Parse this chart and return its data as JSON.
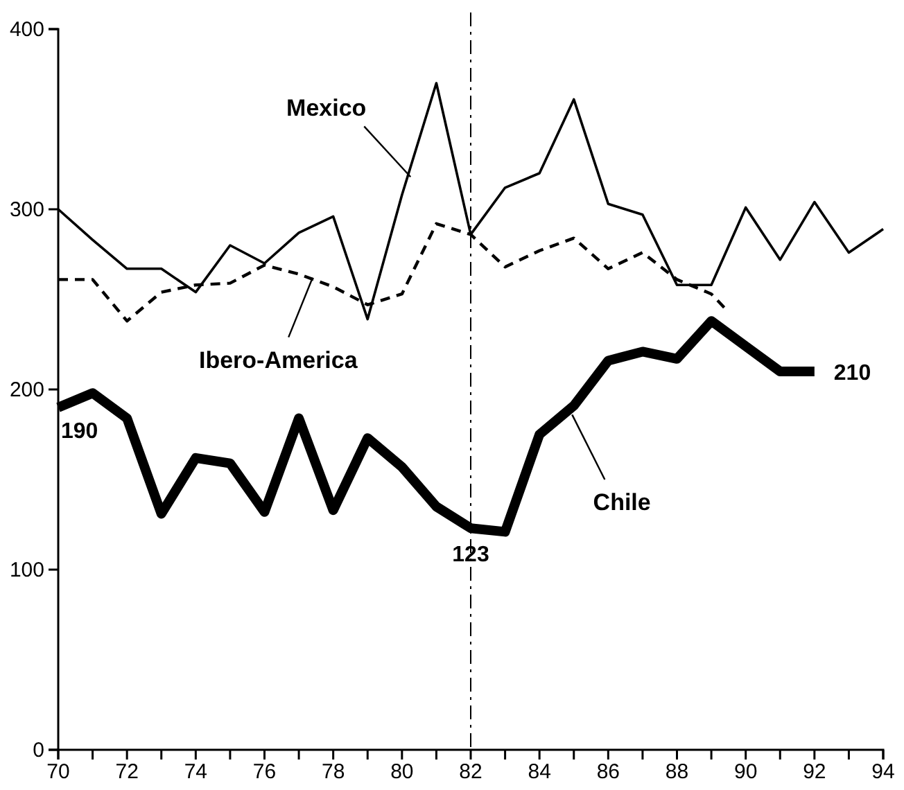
{
  "chart_data": {
    "type": "line",
    "xlim": [
      70,
      94
    ],
    "xticks": [
      70,
      {
        "value": 71,
        "label": null
      },
      72,
      {
        "value": 73,
        "label": null
      },
      74,
      {
        "value": 75,
        "label": null
      },
      76,
      {
        "value": 77,
        "label": null
      },
      78,
      {
        "value": 79,
        "label": null
      },
      80,
      {
        "value": 81,
        "label": null
      },
      82,
      {
        "value": 83,
        "label": null
      },
      84,
      {
        "value": 85,
        "label": null
      },
      86,
      {
        "value": 87,
        "label": null
      },
      88,
      {
        "value": 89,
        "label": null
      },
      90,
      {
        "value": 91,
        "label": null
      },
      92,
      {
        "value": 93,
        "label": null
      },
      94
    ],
    "ylim": [
      0,
      400
    ],
    "yticks": [
      0,
      100,
      200,
      300,
      400
    ],
    "grid": false,
    "legend": false,
    "marker": "none",
    "series": [
      {
        "name": "Mexico",
        "color": "#000000",
        "line_style": "solid",
        "x": [
          70,
          71,
          72,
          73,
          74,
          75,
          76,
          77,
          78,
          79,
          80,
          81,
          82,
          83,
          84,
          85,
          86,
          87,
          88,
          89,
          90,
          91,
          92,
          93,
          94
        ],
        "values": [
          300,
          283,
          267,
          267,
          254,
          280,
          270,
          287,
          296,
          239,
          308,
          370,
          286,
          312,
          320,
          361,
          303,
          297,
          258,
          258,
          301,
          272,
          304,
          276,
          289
        ]
      },
      {
        "name": "Ibero-America",
        "color": "#000000",
        "line_style": "dashed",
        "x": [
          70,
          71,
          72,
          73,
          74,
          75,
          76,
          77,
          78,
          79,
          80,
          81,
          82,
          83,
          84,
          85,
          86,
          87,
          88,
          89,
          89.5
        ],
        "values": [
          261,
          261,
          238,
          254,
          258,
          259,
          269,
          264,
          257,
          247,
          253,
          292,
          286,
          268,
          277,
          284,
          267,
          276,
          261,
          253,
          243
        ]
      },
      {
        "name": "Chile",
        "color": "#000000",
        "line_style": "solid",
        "x": [
          70,
          71,
          72,
          73,
          74,
          75,
          76,
          77,
          78,
          79,
          80,
          81,
          82,
          83,
          84,
          85,
          86,
          87,
          88,
          89,
          90,
          91,
          92
        ],
        "values": [
          190,
          198,
          184,
          131,
          162,
          159,
          132,
          184,
          133,
          173,
          157,
          135,
          123,
          121,
          175,
          191,
          216,
          221,
          217,
          238,
          224,
          210,
          210
        ]
      }
    ],
    "ref_lines": [
      {
        "axis": "x",
        "value": 82,
        "color": "#000000",
        "line_style": "dashdot"
      }
    ],
    "annotations": [
      {
        "text": "190",
        "x": 70,
        "y": 190
      },
      {
        "text": "123",
        "x": 82,
        "y": 123
      },
      {
        "text": "210",
        "x": 92,
        "y": 210
      }
    ]
  }
}
